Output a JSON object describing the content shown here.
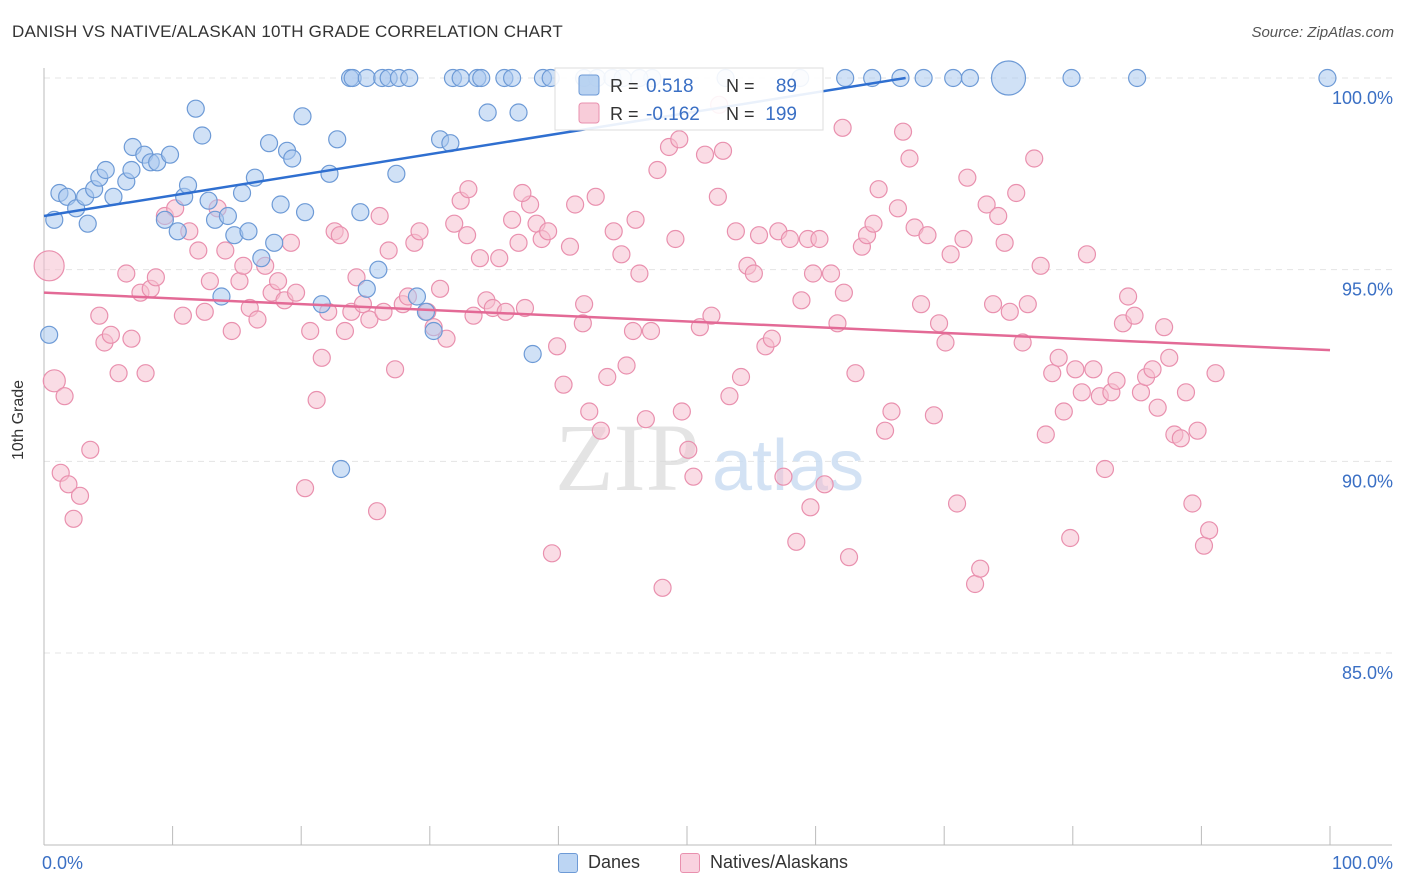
{
  "header": {
    "title": "DANISH VS NATIVE/ALASKAN 10TH GRADE CORRELATION CHART",
    "source": "Source: ZipAtlas.com"
  },
  "watermark": {
    "zip": "ZIP",
    "atlas": "atlas"
  },
  "colors": {
    "danes_fill": "#a9c8ee",
    "danes_stroke": "#6d9ad6",
    "danes_line": "#2f6fd0",
    "natives_fill": "#f6bfd0",
    "natives_stroke": "#e990ae",
    "natives_line": "#e36a96",
    "tick_text": "#3a6fc4"
  },
  "legend_top": {
    "rows": [
      {
        "r_label": "R =",
        "r_value": "0.518",
        "n_label": "N =",
        "n_value": "89"
      },
      {
        "r_label": "R =",
        "r_value": "-0.162",
        "n_label": "N =",
        "n_value": "199"
      }
    ]
  },
  "chart_data": {
    "type": "scatter",
    "title": "DANISH VS NATIVE/ALASKAN 10TH GRADE CORRELATION CHART",
    "xlabel": "",
    "ylabel": "10th Grade",
    "xlim": [
      0,
      100
    ],
    "ylim": [
      80.3,
      100.8
    ],
    "x_tick_labels": [
      "0.0%",
      "100.0%"
    ],
    "y_ticks": [
      85,
      90,
      95,
      100
    ],
    "y_tick_labels": [
      "85.0%",
      "90.0%",
      "95.0%",
      "100.0%"
    ],
    "grid": true,
    "legend_position": "bottom",
    "series": [
      {
        "name": "Danes",
        "r": 0.518,
        "n": 89,
        "trend": {
          "x": [
            0,
            67
          ],
          "y": [
            96.4,
            100.0
          ]
        },
        "points": [
          [
            0.8,
            96.3
          ],
          [
            1.2,
            97.0
          ],
          [
            1.8,
            96.9
          ],
          [
            2.5,
            96.6
          ],
          [
            3.2,
            96.9
          ],
          [
            3.4,
            96.2
          ],
          [
            3.9,
            97.1
          ],
          [
            4.3,
            97.4
          ],
          [
            4.8,
            97.6
          ],
          [
            5.4,
            96.9
          ],
          [
            6.4,
            97.3
          ],
          [
            6.8,
            97.6
          ],
          [
            6.9,
            98.2
          ],
          [
            7.8,
            98.0
          ],
          [
            8.3,
            97.8
          ],
          [
            8.8,
            97.8
          ],
          [
            9.8,
            98.0
          ],
          [
            9.4,
            96.3
          ],
          [
            10.4,
            96.0
          ],
          [
            10.9,
            96.9
          ],
          [
            11.2,
            97.2
          ],
          [
            11.8,
            99.2
          ],
          [
            12.3,
            98.5
          ],
          [
            12.8,
            96.8
          ],
          [
            13.3,
            96.3
          ],
          [
            13.8,
            94.3
          ],
          [
            14.3,
            96.4
          ],
          [
            14.8,
            95.9
          ],
          [
            15.4,
            97.0
          ],
          [
            15.9,
            96.0
          ],
          [
            16.4,
            97.4
          ],
          [
            16.9,
            95.3
          ],
          [
            17.5,
            98.3
          ],
          [
            17.9,
            95.7
          ],
          [
            18.4,
            96.7
          ],
          [
            18.9,
            98.1
          ],
          [
            19.3,
            97.9
          ],
          [
            20.1,
            99.0
          ],
          [
            20.3,
            96.5
          ],
          [
            21.6,
            94.1
          ],
          [
            22.2,
            97.5
          ],
          [
            22.8,
            98.4
          ],
          [
            23.1,
            89.8
          ],
          [
            23.8,
            100.0
          ],
          [
            24.0,
            100.0
          ],
          [
            24.6,
            96.5
          ],
          [
            25.1,
            94.5
          ],
          [
            25.1,
            100.0
          ],
          [
            26.0,
            95.0
          ],
          [
            26.3,
            100.0
          ],
          [
            26.8,
            100.0
          ],
          [
            27.4,
            97.5
          ],
          [
            27.6,
            100.0
          ],
          [
            28.4,
            100.0
          ],
          [
            29.0,
            94.3
          ],
          [
            29.7,
            93.9
          ],
          [
            30.3,
            93.4
          ],
          [
            30.8,
            98.4
          ],
          [
            31.6,
            98.3
          ],
          [
            31.8,
            100.0
          ],
          [
            32.4,
            100.0
          ],
          [
            33.7,
            100.0
          ],
          [
            34.0,
            100.0
          ],
          [
            34.5,
            99.1
          ],
          [
            35.8,
            100.0
          ],
          [
            36.9,
            99.1
          ],
          [
            38.0,
            92.8
          ],
          [
            38.8,
            100.0
          ],
          [
            39.4,
            100.0
          ],
          [
            42.0,
            100.0
          ],
          [
            43.0,
            100.0
          ],
          [
            47.3,
            100.0
          ],
          [
            53.0,
            100.0
          ],
          [
            58.8,
            100.0
          ],
          [
            62.3,
            100.0
          ],
          [
            64.4,
            100.0
          ],
          [
            66.6,
            100.0
          ],
          [
            68.4,
            100.0
          ],
          [
            70.7,
            100.0
          ],
          [
            72.0,
            100.0
          ],
          [
            75.0,
            100.0
          ],
          [
            79.9,
            100.0
          ],
          [
            85.0,
            100.0
          ],
          [
            99.8,
            100.0
          ],
          [
            0.4,
            93.3
          ],
          [
            36.4,
            100.0
          ],
          [
            44.2,
            100.0
          ],
          [
            45.0,
            100.0
          ],
          [
            46.3,
            100.0
          ]
        ]
      },
      {
        "name": "Natives/Alaskans",
        "r": -0.162,
        "n": 199,
        "trend": {
          "x": [
            0,
            100
          ],
          "y": [
            94.4,
            92.9
          ]
        },
        "points": [
          [
            0.4,
            95.1
          ],
          [
            0.8,
            92.1
          ],
          [
            1.3,
            89.7
          ],
          [
            1.6,
            91.7
          ],
          [
            1.9,
            89.4
          ],
          [
            2.3,
            88.5
          ],
          [
            2.8,
            89.1
          ],
          [
            3.6,
            90.3
          ],
          [
            4.3,
            93.8
          ],
          [
            4.7,
            93.1
          ],
          [
            5.2,
            93.3
          ],
          [
            5.8,
            92.3
          ],
          [
            6.4,
            94.9
          ],
          [
            6.8,
            93.2
          ],
          [
            7.5,
            94.4
          ],
          [
            7.9,
            92.3
          ],
          [
            8.3,
            94.5
          ],
          [
            8.7,
            94.8
          ],
          [
            9.4,
            96.4
          ],
          [
            10.2,
            96.6
          ],
          [
            10.8,
            93.8
          ],
          [
            11.3,
            96.0
          ],
          [
            12.0,
            95.5
          ],
          [
            12.5,
            93.9
          ],
          [
            12.9,
            94.7
          ],
          [
            13.5,
            96.6
          ],
          [
            14.1,
            95.5
          ],
          [
            14.6,
            93.4
          ],
          [
            15.2,
            94.7
          ],
          [
            15.5,
            95.1
          ],
          [
            16.0,
            94.0
          ],
          [
            16.6,
            93.7
          ],
          [
            17.2,
            95.1
          ],
          [
            17.7,
            94.4
          ],
          [
            18.2,
            94.7
          ],
          [
            18.7,
            94.2
          ],
          [
            19.2,
            95.7
          ],
          [
            19.6,
            94.4
          ],
          [
            20.3,
            89.3
          ],
          [
            20.7,
            93.4
          ],
          [
            21.2,
            91.6
          ],
          [
            21.6,
            92.7
          ],
          [
            22.1,
            93.9
          ],
          [
            22.6,
            96.0
          ],
          [
            23.0,
            95.9
          ],
          [
            23.4,
            93.4
          ],
          [
            23.9,
            93.9
          ],
          [
            24.3,
            94.8
          ],
          [
            24.8,
            94.1
          ],
          [
            25.3,
            93.7
          ],
          [
            25.9,
            88.7
          ],
          [
            26.4,
            93.9
          ],
          [
            26.8,
            95.5
          ],
          [
            27.3,
            92.4
          ],
          [
            27.9,
            94.1
          ],
          [
            28.3,
            94.3
          ],
          [
            28.8,
            95.7
          ],
          [
            29.2,
            96.0
          ],
          [
            29.8,
            93.9
          ],
          [
            30.3,
            93.5
          ],
          [
            30.8,
            94.5
          ],
          [
            31.3,
            93.2
          ],
          [
            31.9,
            96.2
          ],
          [
            32.4,
            96.8
          ],
          [
            32.9,
            95.9
          ],
          [
            33.4,
            93.8
          ],
          [
            33.9,
            95.3
          ],
          [
            34.4,
            94.2
          ],
          [
            34.9,
            94.0
          ],
          [
            35.4,
            95.3
          ],
          [
            35.9,
            93.9
          ],
          [
            36.4,
            96.3
          ],
          [
            36.9,
            95.7
          ],
          [
            37.4,
            94.0
          ],
          [
            37.8,
            96.7
          ],
          [
            38.3,
            96.2
          ],
          [
            38.7,
            95.8
          ],
          [
            39.2,
            96.0
          ],
          [
            39.5,
            87.6
          ],
          [
            39.9,
            93.0
          ],
          [
            40.4,
            92.0
          ],
          [
            40.9,
            95.6
          ],
          [
            41.3,
            96.7
          ],
          [
            42.0,
            94.1
          ],
          [
            42.4,
            91.3
          ],
          [
            42.9,
            96.9
          ],
          [
            43.3,
            90.8
          ],
          [
            43.8,
            92.2
          ],
          [
            44.3,
            96.0
          ],
          [
            44.9,
            95.4
          ],
          [
            45.3,
            92.5
          ],
          [
            45.8,
            93.4
          ],
          [
            46.3,
            94.9
          ],
          [
            46.8,
            91.1
          ],
          [
            47.2,
            93.4
          ],
          [
            47.7,
            97.6
          ],
          [
            48.1,
            86.7
          ],
          [
            48.6,
            98.2
          ],
          [
            49.1,
            95.8
          ],
          [
            49.6,
            91.3
          ],
          [
            50.1,
            90.3
          ],
          [
            50.5,
            89.6
          ],
          [
            51.0,
            93.5
          ],
          [
            51.4,
            98.0
          ],
          [
            51.9,
            93.8
          ],
          [
            52.4,
            96.9
          ],
          [
            52.8,
            98.1
          ],
          [
            53.3,
            91.7
          ],
          [
            53.8,
            96.0
          ],
          [
            54.2,
            92.2
          ],
          [
            54.7,
            95.1
          ],
          [
            55.2,
            94.9
          ],
          [
            55.6,
            95.9
          ],
          [
            56.1,
            93.0
          ],
          [
            56.6,
            93.2
          ],
          [
            57.1,
            96.0
          ],
          [
            57.5,
            89.6
          ],
          [
            58.0,
            95.8
          ],
          [
            58.5,
            87.9
          ],
          [
            58.9,
            94.2
          ],
          [
            59.4,
            95.8
          ],
          [
            59.8,
            94.9
          ],
          [
            60.3,
            95.8
          ],
          [
            60.7,
            89.4
          ],
          [
            61.2,
            94.9
          ],
          [
            61.7,
            93.6
          ],
          [
            62.2,
            94.4
          ],
          [
            62.6,
            87.5
          ],
          [
            63.1,
            92.3
          ],
          [
            63.6,
            95.6
          ],
          [
            64.0,
            95.9
          ],
          [
            64.5,
            96.2
          ],
          [
            64.9,
            97.1
          ],
          [
            65.4,
            90.8
          ],
          [
            65.9,
            91.3
          ],
          [
            66.4,
            96.6
          ],
          [
            66.8,
            98.6
          ],
          [
            67.3,
            97.9
          ],
          [
            67.7,
            96.1
          ],
          [
            68.2,
            94.1
          ],
          [
            68.7,
            95.9
          ],
          [
            69.2,
            91.2
          ],
          [
            69.6,
            93.6
          ],
          [
            70.1,
            93.1
          ],
          [
            70.5,
            95.4
          ],
          [
            71.0,
            88.9
          ],
          [
            71.5,
            95.8
          ],
          [
            71.8,
            97.4
          ],
          [
            72.4,
            86.8
          ],
          [
            72.8,
            87.2
          ],
          [
            73.3,
            96.7
          ],
          [
            73.8,
            94.1
          ],
          [
            74.2,
            96.4
          ],
          [
            74.7,
            95.7
          ],
          [
            75.1,
            93.9
          ],
          [
            75.6,
            97.0
          ],
          [
            76.1,
            93.1
          ],
          [
            76.5,
            94.1
          ],
          [
            77.0,
            97.9
          ],
          [
            77.5,
            95.1
          ],
          [
            77.9,
            90.7
          ],
          [
            78.4,
            92.3
          ],
          [
            78.9,
            92.7
          ],
          [
            79.3,
            91.3
          ],
          [
            79.8,
            88.0
          ],
          [
            80.2,
            92.4
          ],
          [
            80.7,
            91.8
          ],
          [
            81.1,
            95.4
          ],
          [
            81.6,
            92.4
          ],
          [
            82.1,
            91.7
          ],
          [
            82.5,
            89.8
          ],
          [
            83.0,
            91.8
          ],
          [
            83.4,
            92.1
          ],
          [
            83.9,
            93.6
          ],
          [
            84.3,
            94.3
          ],
          [
            84.8,
            93.8
          ],
          [
            85.3,
            91.8
          ],
          [
            85.7,
            92.2
          ],
          [
            86.2,
            92.4
          ],
          [
            86.6,
            91.4
          ],
          [
            87.1,
            93.5
          ],
          [
            87.5,
            92.7
          ],
          [
            87.9,
            90.7
          ],
          [
            88.4,
            90.6
          ],
          [
            88.8,
            91.8
          ],
          [
            89.3,
            88.9
          ],
          [
            89.7,
            90.8
          ],
          [
            90.2,
            87.8
          ],
          [
            90.6,
            88.2
          ],
          [
            91.1,
            92.3
          ],
          [
            59.6,
            88.8
          ],
          [
            26.1,
            96.4
          ],
          [
            33.0,
            97.1
          ],
          [
            49.4,
            98.4
          ],
          [
            52.5,
            99.3
          ],
          [
            41.9,
            93.6
          ],
          [
            62.1,
            98.7
          ],
          [
            37.2,
            97.0
          ],
          [
            46.0,
            96.3
          ]
        ]
      }
    ]
  },
  "legend_bottom": [
    "Danes",
    "Natives/Alaskans"
  ]
}
